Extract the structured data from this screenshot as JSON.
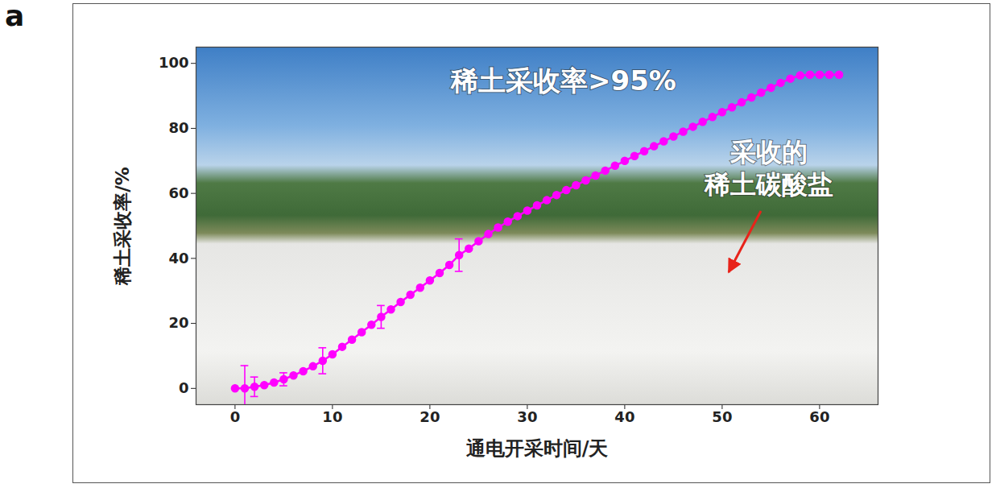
{
  "chart_data": {
    "type": "line",
    "panel_label": "a",
    "x_label": "通电开采时间/天",
    "y_label": "稀土采收率/%",
    "annotations": [
      "稀土采收率>95%",
      "采收的\n稀土碳酸盐"
    ],
    "x": [
      0,
      1,
      2,
      3,
      4,
      5,
      6,
      7,
      8,
      9,
      10,
      11,
      12,
      13,
      14,
      15,
      16,
      17,
      18,
      19,
      20,
      21,
      22,
      23,
      24,
      25,
      26,
      27,
      28,
      29,
      30,
      31,
      32,
      33,
      34,
      35,
      36,
      37,
      38,
      39,
      40,
      41,
      42,
      43,
      44,
      45,
      46,
      47,
      48,
      49,
      50,
      51,
      52,
      53,
      54,
      55,
      56,
      57,
      58,
      59,
      60,
      61,
      62
    ],
    "values": [
      0,
      0,
      0.5,
      1,
      1.8,
      2.8,
      4,
      5.3,
      6.8,
      8.5,
      10.5,
      12.8,
      15,
      17.3,
      19.6,
      22,
      24.3,
      26.6,
      28.8,
      31,
      33.2,
      35.5,
      38,
      41,
      43,
      45.3,
      47.5,
      49.5,
      51.3,
      53,
      54.7,
      56.3,
      57.9,
      59.5,
      61,
      62.5,
      64,
      65.5,
      67,
      68.5,
      70,
      71.5,
      73,
      74.5,
      76,
      77.5,
      79,
      80.5,
      82,
      83.5,
      85,
      86.5,
      88,
      89.5,
      91,
      92.5,
      94,
      95.3,
      96.3,
      96.5,
      96.5,
      96.5,
      96.5
    ],
    "errors": [
      null,
      7,
      3,
      null,
      null,
      2,
      null,
      null,
      null,
      4,
      null,
      null,
      null,
      null,
      null,
      3.5,
      null,
      null,
      null,
      null,
      null,
      null,
      null,
      5,
      null,
      null,
      null,
      null,
      null,
      null,
      null,
      null,
      null,
      null,
      null,
      null,
      null,
      null,
      null,
      null,
      null,
      null,
      null,
      null,
      null,
      null,
      null,
      null,
      null,
      null,
      null,
      null,
      null,
      null,
      null,
      null,
      null,
      null,
      null,
      null,
      null,
      null,
      null
    ],
    "color": "#ff00ff",
    "marker": "circle",
    "line_style": "solid",
    "xlim": [
      -4,
      66
    ],
    "xticks": [
      0,
      10,
      20,
      30,
      40,
      50,
      60
    ],
    "ylim": [
      -5,
      105
    ],
    "yticks": [
      0,
      20,
      40,
      60,
      80,
      100
    ],
    "grid": false
  }
}
